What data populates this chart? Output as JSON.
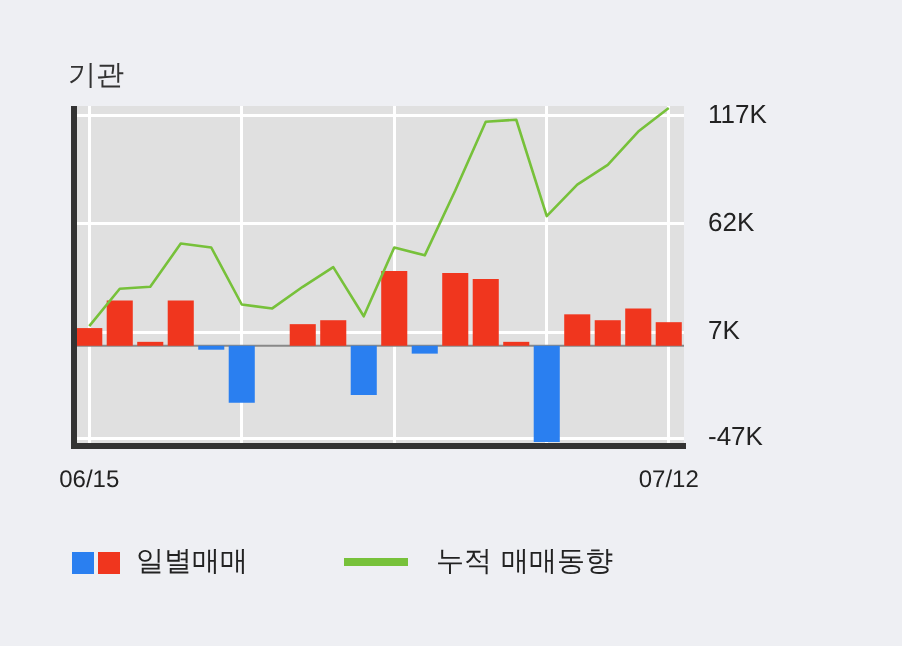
{
  "chart_data": {
    "type": "bar",
    "title": "기관",
    "categories": [
      "06/15",
      null,
      null,
      null,
      null,
      null,
      null,
      null,
      null,
      null,
      null,
      null,
      null,
      null,
      null,
      null,
      null,
      null,
      null,
      "07/12"
    ],
    "series": [
      {
        "name": "일별매매",
        "colors": [
          "#f0361e",
          "#f0361e",
          "#f0361e",
          "#f0361e",
          "#2a7ff0",
          "#2a7ff0",
          "#f0361e",
          "#f0361e",
          "#f0361e",
          "#2a7ff0",
          "#f0361e",
          "#2a7ff0",
          "#f0361e",
          "#f0361e",
          "#f0361e",
          "#2a7ff0",
          "#f0361e",
          "#f0361e",
          "#f0361e",
          "#f0361e"
        ],
        "values": [
          9,
          23,
          2,
          23,
          -2,
          -29,
          0,
          11,
          13,
          -25,
          38,
          -4,
          37,
          34,
          2,
          -49,
          16,
          13,
          19,
          12
        ]
      },
      {
        "name": "누적 매매동향",
        "type": "line",
        "color": "#77c13a",
        "values": [
          10,
          29,
          30,
          52,
          50,
          21,
          19,
          30,
          40,
          15,
          50,
          46,
          79,
          114,
          115,
          66,
          82,
          92,
          109,
          121
        ]
      }
    ],
    "ylim": [
      -51,
      122
    ],
    "yticks": [
      {
        "value": -47,
        "label": "-47K"
      },
      {
        "value": 7,
        "label": "7K"
      },
      {
        "value": 62,
        "label": "62K"
      },
      {
        "value": 117,
        "label": "117K"
      }
    ],
    "grid": true,
    "legend": "bottom left",
    "marker": "none"
  }
}
